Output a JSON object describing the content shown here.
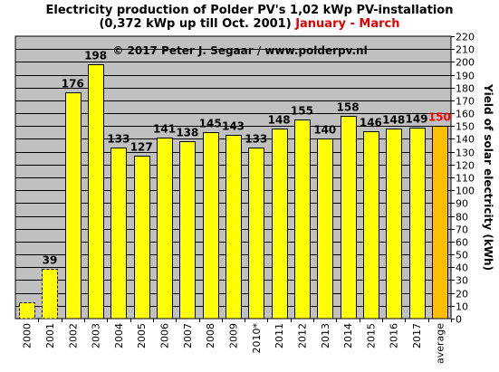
{
  "title_line1": "Electricity production  of Polder PV's 1,02 kWp PV-installation",
  "title_line2_main": "(0,372 kWp up till Oct. 2001)",
  "title_line2_period": "January - March",
  "copyright": "© 2017 Peter J. Segaar / www.polderpv.nl",
  "colors": {
    "plot_background": "#c0c0c0",
    "bar_regular": "#ffff00",
    "bar_average": "#ffbf00",
    "average_label": "#ff0000",
    "period_text": "#e00000"
  },
  "chart_data": {
    "type": "bar",
    "title": "Electricity production  of Polder PV's 1,02 kWp PV-installation (0,372 kWp up till Oct. 2001) January - March",
    "categories": [
      "2000",
      "2001",
      "2002",
      "2003",
      "2004",
      "2005",
      "2006",
      "2007",
      "2008",
      "2009",
      "2010*",
      "2011",
      "2012",
      "2013",
      "2014",
      "2015",
      "2016",
      "2017",
      "average"
    ],
    "values": [
      13,
      39,
      176,
      198,
      133,
      127,
      141,
      138,
      145,
      143,
      133,
      148,
      155,
      140,
      158,
      146,
      148,
      149,
      150
    ],
    "data_labels": [
      "",
      "39",
      "176",
      "198",
      "133",
      "127",
      "141",
      "138",
      "145",
      "143",
      "133",
      "148",
      "155",
      "140",
      "158",
      "146",
      "148",
      "149",
      "150"
    ],
    "dashed_bars": [
      "2000",
      "2001"
    ],
    "highlighted_bar": "average",
    "ylabel": "Yield of solar electricity (kWh)",
    "ylim": [
      0,
      220
    ],
    "y_ticks": [
      0,
      10,
      20,
      30,
      40,
      50,
      60,
      70,
      80,
      90,
      100,
      110,
      120,
      130,
      140,
      150,
      160,
      170,
      180,
      190,
      200,
      210,
      220
    ],
    "y_axis_side": "right",
    "grid": true,
    "legend": "none"
  }
}
